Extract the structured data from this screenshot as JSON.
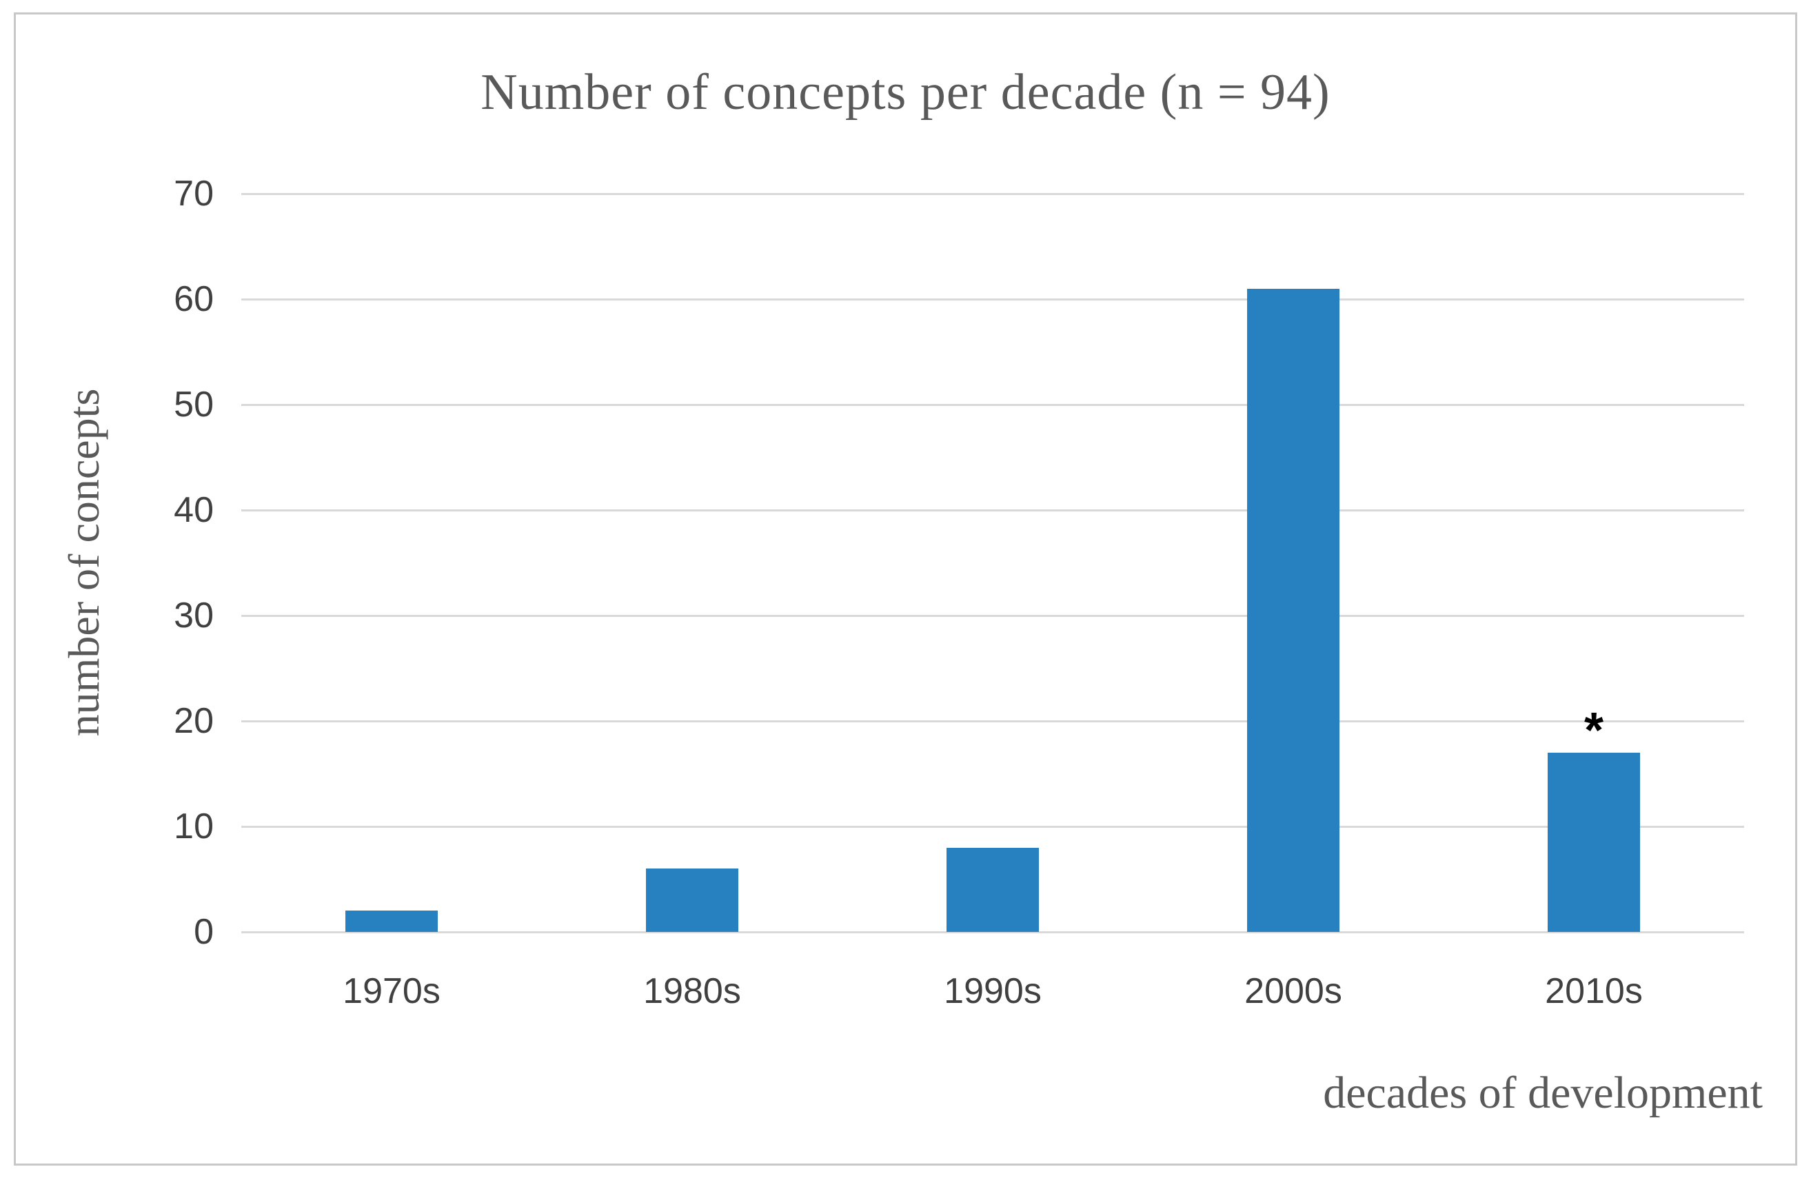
{
  "figure": {
    "border_color": "#c8c8c8",
    "background_color": "#ffffff"
  },
  "chart_data": {
    "type": "bar",
    "title": "Number of concepts per decade (n = 94)",
    "xlabel": "decades of development",
    "ylabel": "number of concepts",
    "categories": [
      "1970s",
      "1980s",
      "1990s",
      "2000s",
      "2010s"
    ],
    "values": [
      2,
      6,
      8,
      61,
      17
    ],
    "ylim": [
      0,
      70
    ],
    "yticks": [
      0,
      10,
      20,
      30,
      40,
      50,
      60,
      70
    ],
    "grid": "horizontal",
    "legend_position": "none",
    "bar_color": "#2780c0",
    "gridline_color": "#d9d9d9",
    "tick_label_color": "#404040",
    "title_color": "#595959",
    "annotations": [
      {
        "category": "2010s",
        "text": "*",
        "position": "above-bar"
      }
    ]
  }
}
